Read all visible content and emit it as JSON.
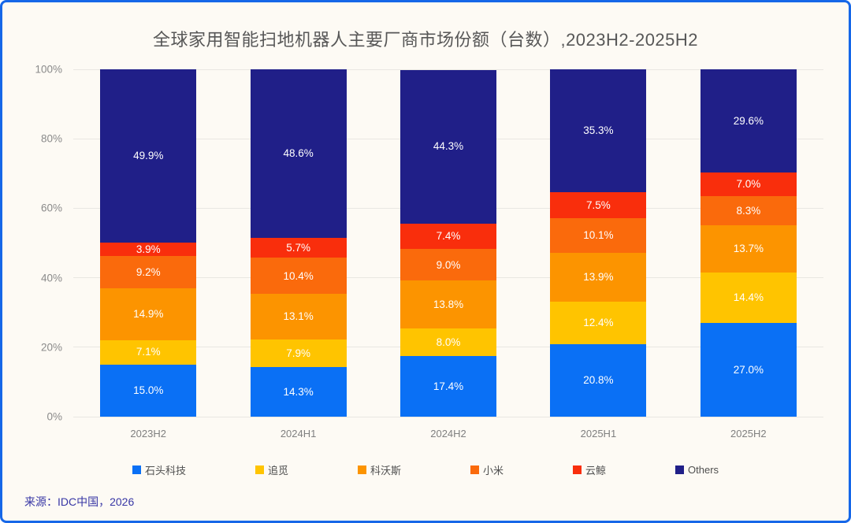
{
  "chart_data": {
    "type": "bar",
    "stacked": true,
    "title": "全球家用智能扫地机器人主要厂商市场份额（台数）,2023H2-2025H2",
    "categories": [
      "2023H2",
      "2024H1",
      "2024H2",
      "2025H1",
      "2025H2"
    ],
    "series": [
      {
        "name": "石头科技",
        "color": "#0A70F5",
        "values": [
          15.0,
          14.3,
          17.4,
          20.8,
          27.0
        ]
      },
      {
        "name": "追觅",
        "color": "#FFC400",
        "values": [
          7.1,
          7.9,
          8.0,
          12.4,
          14.4
        ]
      },
      {
        "name": "科沃斯",
        "color": "#FC9400",
        "values": [
          14.9,
          13.1,
          13.8,
          13.9,
          13.7
        ]
      },
      {
        "name": "小米",
        "color": "#FA6A0C",
        "values": [
          9.2,
          10.4,
          9.0,
          10.1,
          8.3
        ]
      },
      {
        "name": "云鲸",
        "color": "#F92E0C",
        "values": [
          3.9,
          5.7,
          7.4,
          7.5,
          7.0
        ]
      },
      {
        "name": "Others",
        "color": "#201F88",
        "values": [
          49.9,
          48.6,
          44.3,
          35.3,
          29.6
        ]
      }
    ],
    "ylim": [
      0,
      100
    ],
    "y_ticks": [
      0,
      20,
      40,
      60,
      80,
      100
    ],
    "y_tick_suffix": "%",
    "grid": true,
    "legend_position": "bottom",
    "value_label_suffix": "%"
  },
  "source": "来源：IDC中国，2026",
  "colors": {
    "card_background": "#FDFAF4",
    "card_border": "#1667E8",
    "gridline": "#E9E7E2",
    "title_text": "#575757",
    "axis_text": "#8A8A8A",
    "segment_label_text": "#FFFFFF",
    "source_text": "#3736A5"
  }
}
